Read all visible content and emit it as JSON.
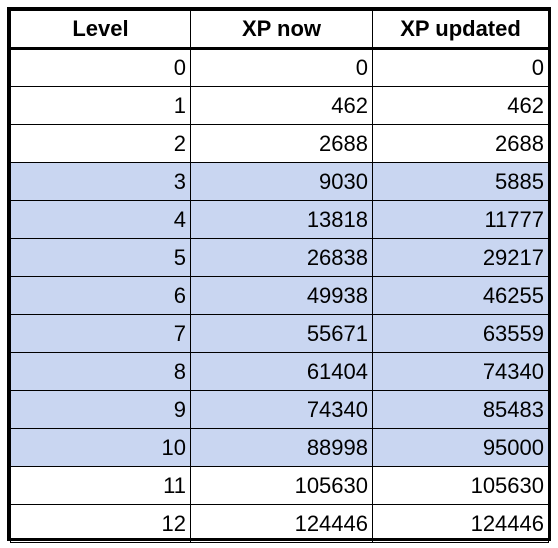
{
  "table": {
    "headers": [
      "Level",
      "XP now",
      "XP updated"
    ],
    "highlight_color": "#c9d6f1",
    "rows": [
      {
        "level": "0",
        "xp_now": "0",
        "xp_updated": "0",
        "highlighted": false
      },
      {
        "level": "1",
        "xp_now": "462",
        "xp_updated": "462",
        "highlighted": false
      },
      {
        "level": "2",
        "xp_now": "2688",
        "xp_updated": "2688",
        "highlighted": false
      },
      {
        "level": "3",
        "xp_now": "9030",
        "xp_updated": "5885",
        "highlighted": true
      },
      {
        "level": "4",
        "xp_now": "13818",
        "xp_updated": "11777",
        "highlighted": true
      },
      {
        "level": "5",
        "xp_now": "26838",
        "xp_updated": "29217",
        "highlighted": true
      },
      {
        "level": "6",
        "xp_now": "49938",
        "xp_updated": "46255",
        "highlighted": true
      },
      {
        "level": "7",
        "xp_now": "55671",
        "xp_updated": "63559",
        "highlighted": true
      },
      {
        "level": "8",
        "xp_now": "61404",
        "xp_updated": "74340",
        "highlighted": true
      },
      {
        "level": "9",
        "xp_now": "74340",
        "xp_updated": "85483",
        "highlighted": true
      },
      {
        "level": "10",
        "xp_now": "88998",
        "xp_updated": "95000",
        "highlighted": true
      },
      {
        "level": "11",
        "xp_now": "105630",
        "xp_updated": "105630",
        "highlighted": false
      },
      {
        "level": "12",
        "xp_now": "124446",
        "xp_updated": "124446",
        "highlighted": false
      }
    ]
  }
}
